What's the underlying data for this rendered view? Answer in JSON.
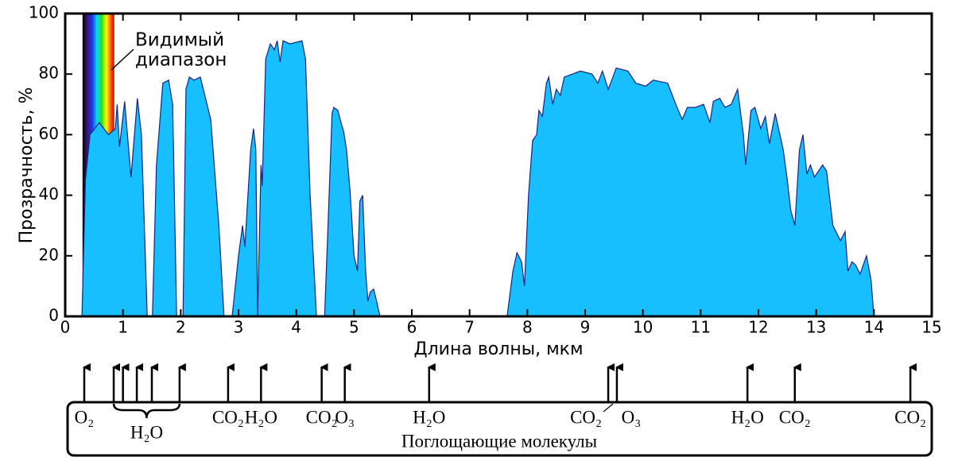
{
  "chart_data": {
    "type": "area",
    "x": [
      0.29,
      0.35,
      0.43,
      0.59,
      0.75,
      0.87,
      0.9,
      0.94,
      1.03,
      1.14,
      1.25,
      1.32,
      1.42,
      1.51,
      1.58,
      1.69,
      1.79,
      1.86,
      1.93,
      2.04,
      2.09,
      2.15,
      2.23,
      2.34,
      2.52,
      2.66,
      2.75,
      2.89,
      3.0,
      3.07,
      3.11,
      3.21,
      3.26,
      3.3,
      3.33,
      3.39,
      3.41,
      3.47,
      3.55,
      3.62,
      3.67,
      3.72,
      3.77,
      3.89,
      4.1,
      4.16,
      4.24,
      4.35,
      4.49,
      4.55,
      4.62,
      4.65,
      4.72,
      4.76,
      4.82,
      4.87,
      4.93,
      5.0,
      5.06,
      5.1,
      5.15,
      5.2,
      5.24,
      5.28,
      5.34,
      5.39,
      5.45,
      7.65,
      7.75,
      7.82,
      7.9,
      7.95,
      8.02,
      8.09,
      8.16,
      8.2,
      8.26,
      8.33,
      8.37,
      8.44,
      8.5,
      8.57,
      8.64,
      8.78,
      8.92,
      9.12,
      9.22,
      9.3,
      9.4,
      9.54,
      9.74,
      9.88,
      10.05,
      10.18,
      10.43,
      10.57,
      10.68,
      10.77,
      10.91,
      11.05,
      11.16,
      11.22,
      11.33,
      11.42,
      11.53,
      11.64,
      11.74,
      11.78,
      11.87,
      11.94,
      12.04,
      12.12,
      12.19,
      12.29,
      12.43,
      12.5,
      12.56,
      12.63,
      12.71,
      12.77,
      12.84,
      12.9,
      12.97,
      13.11,
      13.18,
      13.29,
      13.42,
      13.5,
      13.55,
      13.62,
      13.68,
      13.76,
      13.87,
      13.95,
      14.0
    ],
    "values": [
      0,
      45,
      60,
      64,
      60,
      62,
      70,
      56,
      71,
      46,
      72,
      60,
      0,
      0,
      50,
      77,
      78,
      70,
      0,
      0,
      75,
      79,
      78,
      79,
      65,
      30,
      0,
      0,
      20,
      30,
      23,
      55,
      62,
      55,
      0,
      50,
      43,
      85,
      90,
      88,
      91,
      84,
      91,
      90,
      91,
      85,
      40,
      0,
      0,
      30,
      67,
      69,
      68,
      65,
      61,
      55,
      42,
      20,
      15,
      38,
      40,
      15,
      5,
      8,
      9,
      5,
      0,
      0,
      15,
      21,
      18,
      10,
      40,
      58,
      60,
      68,
      66,
      77,
      79,
      70,
      75,
      73,
      79,
      80,
      81,
      80,
      77,
      81,
      75,
      82,
      81,
      77,
      76,
      78,
      77,
      70,
      65,
      69,
      69,
      70,
      64,
      71,
      72,
      69,
      70,
      75,
      60,
      50,
      68,
      69,
      62,
      66,
      57,
      67,
      55,
      45,
      35,
      30,
      55,
      60,
      47,
      50,
      46,
      50,
      48,
      30,
      25,
      28,
      15,
      18,
      17,
      14,
      20,
      12,
      0
    ],
    "color": "#18bfff",
    "line_color": "#1a237e",
    "xlim": [
      0,
      15
    ],
    "xticks": [
      0,
      1,
      2,
      3,
      4,
      5,
      6,
      7,
      8,
      9,
      10,
      11,
      12,
      13,
      14,
      15
    ],
    "ylim": [
      0,
      100
    ],
    "yticks": [
      0,
      20,
      40,
      60,
      80,
      100
    ],
    "xlabel": "Длина волны, мкм",
    "ylabel": "Прозрачность, %",
    "annotation": [
      "Видимый",
      "диапазон"
    ]
  },
  "absorbers": {
    "title": "Поглощающие молекулы",
    "items": [
      {
        "label": "O₂",
        "x": [
          0.33
        ]
      },
      {
        "label": "H₂O",
        "x": [
          0.84,
          1.0,
          1.24,
          1.5,
          1.98
        ]
      },
      {
        "label": "CO₂",
        "x": [
          2.82
        ]
      },
      {
        "label": "H₂O",
        "x": [
          3.39
        ]
      },
      {
        "label": "CO₂",
        "x": [
          4.44
        ]
      },
      {
        "label": "O₃",
        "x": [
          4.84
        ]
      },
      {
        "label": "H₂O",
        "x": [
          6.3
        ]
      },
      {
        "label": "CO₂",
        "x": [
          9.4
        ]
      },
      {
        "label": "O₃",
        "x": [
          9.55
        ]
      },
      {
        "label": "H₂O",
        "x": [
          11.81
        ]
      },
      {
        "label": "CO₂",
        "x": [
          12.63
        ]
      },
      {
        "label": "CO₂",
        "x": [
          14.63
        ]
      }
    ]
  }
}
